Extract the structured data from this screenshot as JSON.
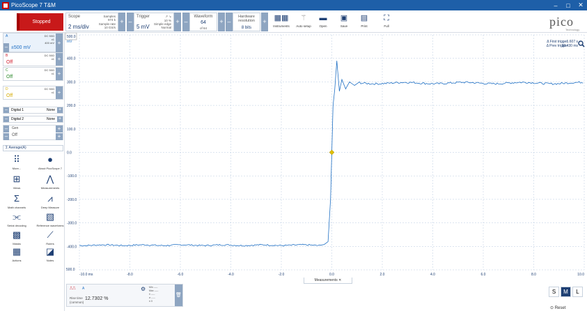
{
  "window": {
    "title": "PicoScope 7 T&M",
    "minimize": "–",
    "maximize": "□",
    "close": "✕"
  },
  "toolbar": {
    "status": "Stopped",
    "scope": {
      "label": "Scope",
      "value": "2 ms/div",
      "samples_label": "Samples",
      "samples_val": "974 k",
      "rate_label": "Sample rate",
      "rate_val": "10 GS/s"
    },
    "trigger": {
      "label": "Trigger",
      "value": "5 mV",
      "pct": "10 %",
      "mode": "Simple edge",
      "type": "Normal"
    },
    "waveform": {
      "label": "Waveform",
      "value": "64",
      "of": "of 64"
    },
    "hardware": {
      "label": "Hardware resolution",
      "value": "8 bits"
    },
    "buttons": [
      {
        "label": "Instruments",
        "icon": "instruments-icon"
      },
      {
        "label": "Auto setup",
        "icon": "wand-icon"
      },
      {
        "label": "Open",
        "icon": "folder-icon"
      },
      {
        "label": "Save",
        "icon": "save-icon"
      },
      {
        "label": "Print",
        "icon": "print-icon"
      },
      {
        "label": "Full",
        "icon": "fullscreen-icon"
      }
    ],
    "logo": "pico",
    "logo_sub": "Technology"
  },
  "channels": [
    {
      "name": "A",
      "coupling": "DC 50Ω",
      "probe": "x1",
      "bw": "400 mV",
      "value": "±500 mV",
      "color": "#1e6fc4"
    },
    {
      "name": "B",
      "coupling": "DC 50Ω",
      "probe": "x1",
      "value": "Off",
      "color": "#d11f2e"
    },
    {
      "name": "C",
      "coupling": "DC 50Ω",
      "probe": "x1",
      "value": "Off",
      "color": "#2d8a2d"
    },
    {
      "name": "D",
      "coupling": "DC 50Ω",
      "probe": "x1",
      "value": "Off",
      "color": "#d4a900"
    }
  ],
  "digital": [
    {
      "label": "Digital 1",
      "value": "None"
    },
    {
      "label": "Digital 2",
      "value": "None"
    }
  ],
  "gen": {
    "label": "Gen",
    "value": "Off"
  },
  "average": "Σ  Average(A)",
  "tools": [
    {
      "label": "More...",
      "icon": "grid-dots-icon"
    },
    {
      "label": "About PicoScope 7",
      "icon": "info-icon"
    },
    {
      "label": "Views",
      "icon": "views-icon"
    },
    {
      "label": "Measurements",
      "icon": "measure-icon"
    },
    {
      "label": "Math channels",
      "icon": "sigma-icon"
    },
    {
      "label": "Deep Measure",
      "icon": "deep-measure-icon"
    },
    {
      "label": "Serial decoding",
      "icon": "serial-icon"
    },
    {
      "label": "Reference waveforms",
      "icon": "reference-icon"
    },
    {
      "label": "Masks",
      "icon": "mask-icon"
    },
    {
      "label": "Rulers",
      "icon": "ruler-icon"
    },
    {
      "label": "Actions",
      "icon": "actions-icon"
    },
    {
      "label": "Notes",
      "icon": "notes-icon"
    }
  ],
  "scope_view": {
    "y_unit": "mV",
    "y_top_label": "500.0",
    "y_bottom_label": "500.0",
    "y_ticks": [
      "400.0",
      "300.0",
      "200.0",
      "100.0",
      "0.0",
      "-100.0",
      "-200.0",
      "-300.0",
      "-400.0"
    ],
    "x_ticks": [
      "-10.0 ms",
      "-8.0",
      "-6.0",
      "-4.0",
      "-2.0",
      "0.0",
      "2.0",
      "4.0",
      "6.0",
      "8.0",
      "10.0"
    ],
    "first_trigger_label": "Δ First trigger",
    "first_trigger_val": "1.607 s",
    "prev_trigger_label": "Δ Prev trigger",
    "prev_trigger_val": "30.430 ms",
    "trace_color": "#1e6fc4",
    "trigger_marker_color": "#e0c000"
  },
  "measurements": {
    "tab": "Measurements",
    "tab_close": "✕",
    "channel": "A",
    "name": "Rise time",
    "subname": "(common)",
    "value": "12.7302 %",
    "stats": [
      {
        "k": "Min",
        "v": "-----"
      },
      {
        "k": "Max",
        "v": "-----"
      },
      {
        "k": "x̄",
        "v": "-----"
      },
      {
        "k": "σ",
        "v": "-----"
      },
      {
        "k": "n",
        "v": "0"
      }
    ]
  },
  "size_buttons": [
    "S",
    "M",
    "L"
  ],
  "reset": "Reset"
}
